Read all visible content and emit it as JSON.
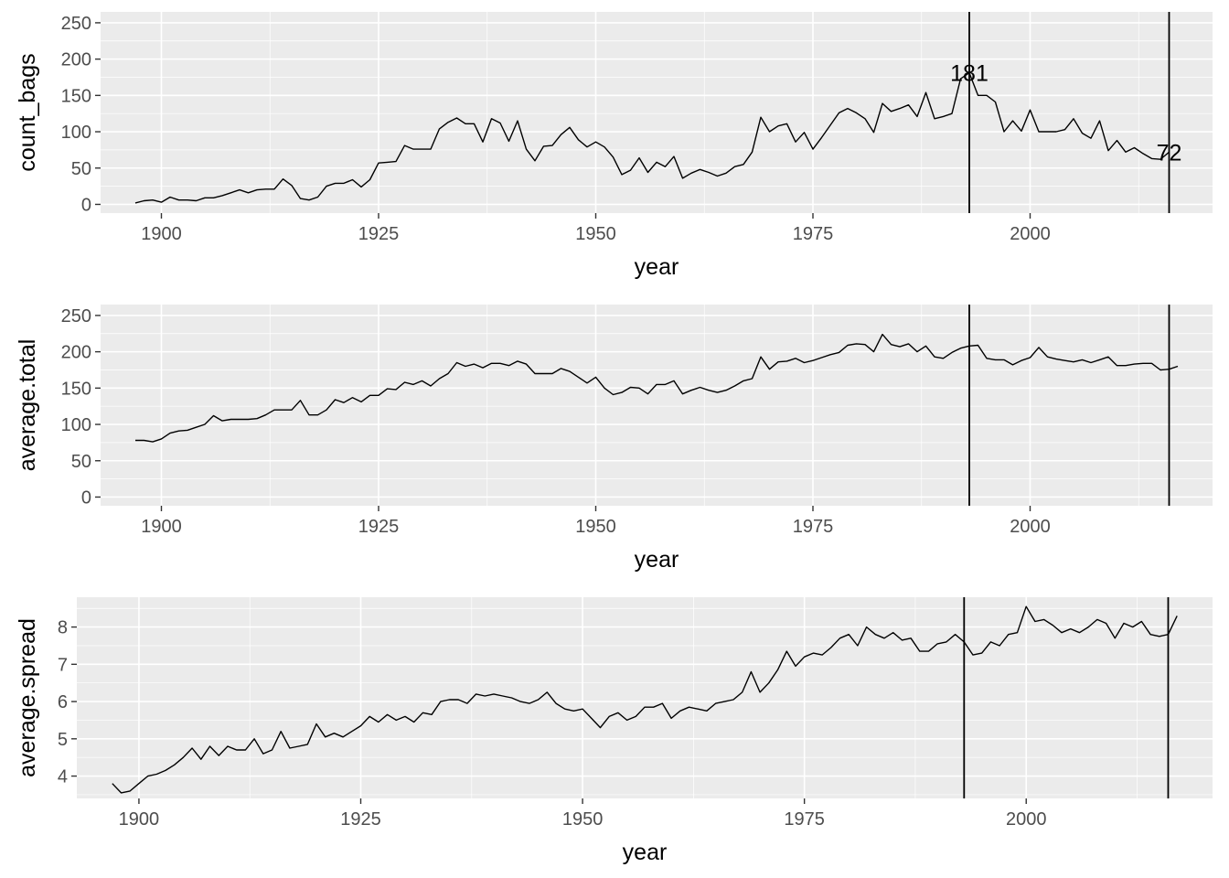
{
  "chart_data": [
    {
      "type": "line",
      "ylabel": "count_bags",
      "xlabel": "year",
      "xlim": [
        1893,
        2021
      ],
      "ylim": [
        -12,
        265
      ],
      "x_ticks": [
        1900,
        1925,
        1950,
        1975,
        2000
      ],
      "y_ticks": [
        0,
        50,
        100,
        150,
        200,
        250
      ],
      "vlines": [
        1993,
        2016
      ],
      "annotations": [
        {
          "x": 1993,
          "y": 181,
          "label": "181"
        },
        {
          "x": 2016,
          "y": 72,
          "label": "72"
        }
      ],
      "x": [
        1897,
        1898,
        1899,
        1900,
        1901,
        1902,
        1903,
        1904,
        1905,
        1906,
        1907,
        1908,
        1909,
        1910,
        1911,
        1912,
        1913,
        1914,
        1915,
        1916,
        1917,
        1918,
        1919,
        1920,
        1921,
        1922,
        1923,
        1924,
        1925,
        1926,
        1927,
        1928,
        1929,
        1930,
        1931,
        1932,
        1933,
        1934,
        1935,
        1936,
        1937,
        1938,
        1939,
        1940,
        1941,
        1942,
        1943,
        1944,
        1945,
        1946,
        1947,
        1948,
        1949,
        1950,
        1951,
        1952,
        1953,
        1954,
        1955,
        1956,
        1957,
        1958,
        1959,
        1960,
        1961,
        1962,
        1963,
        1964,
        1965,
        1966,
        1967,
        1968,
        1969,
        1970,
        1971,
        1972,
        1973,
        1974,
        1975,
        1976,
        1977,
        1978,
        1979,
        1980,
        1981,
        1982,
        1983,
        1984,
        1985,
        1986,
        1987,
        1988,
        1989,
        1990,
        1991,
        1992,
        1993,
        1994,
        1995,
        1996,
        1997,
        1998,
        1999,
        2000,
        2001,
        2002,
        2003,
        2004,
        2005,
        2006,
        2007,
        2008,
        2009,
        2010,
        2011,
        2012,
        2013,
        2014,
        2015,
        2016
      ],
      "values": [
        2,
        5,
        6,
        3,
        10,
        6,
        6,
        5,
        9,
        9,
        12,
        16,
        20,
        16,
        20,
        21,
        21,
        35,
        26,
        8,
        6,
        10,
        25,
        29,
        29,
        34,
        24,
        34,
        57,
        58,
        59,
        81,
        76,
        76,
        76,
        104,
        113,
        119,
        111,
        111,
        86,
        118,
        112,
        87,
        115,
        76,
        60,
        80,
        81,
        96,
        106,
        89,
        79,
        86,
        79,
        65,
        41,
        47,
        64,
        44,
        58,
        52,
        66,
        36,
        43,
        48,
        44,
        39,
        43,
        52,
        55,
        72,
        120,
        100,
        108,
        111,
        86,
        99,
        76,
        92,
        109,
        126,
        132,
        126,
        118,
        99,
        139,
        128,
        132,
        137,
        121,
        154,
        118,
        121,
        125,
        173,
        181,
        150,
        150,
        141,
        100,
        115,
        101,
        130,
        100,
        100,
        100,
        103,
        118,
        98,
        91,
        115,
        74,
        88,
        72,
        78,
        70,
        63,
        62,
        72
      ]
    },
    {
      "type": "line",
      "ylabel": "average.total",
      "xlabel": "year",
      "xlim": [
        1893,
        2021
      ],
      "ylim": [
        -12,
        265
      ],
      "x_ticks": [
        1900,
        1925,
        1950,
        1975,
        2000
      ],
      "y_ticks": [
        0,
        50,
        100,
        150,
        200,
        250
      ],
      "vlines": [
        1993,
        2016
      ],
      "x": [
        1897,
        1898,
        1899,
        1900,
        1901,
        1902,
        1903,
        1904,
        1905,
        1906,
        1907,
        1908,
        1909,
        1910,
        1911,
        1912,
        1913,
        1914,
        1915,
        1916,
        1917,
        1918,
        1919,
        1920,
        1921,
        1922,
        1923,
        1924,
        1925,
        1926,
        1927,
        1928,
        1929,
        1930,
        1931,
        1932,
        1933,
        1934,
        1935,
        1936,
        1937,
        1938,
        1939,
        1940,
        1941,
        1942,
        1943,
        1944,
        1945,
        1946,
        1947,
        1948,
        1949,
        1950,
        1951,
        1952,
        1953,
        1954,
        1955,
        1956,
        1957,
        1958,
        1959,
        1960,
        1961,
        1962,
        1963,
        1964,
        1965,
        1966,
        1967,
        1968,
        1969,
        1970,
        1971,
        1972,
        1973,
        1974,
        1975,
        1976,
        1977,
        1978,
        1979,
        1980,
        1981,
        1982,
        1983,
        1984,
        1985,
        1986,
        1987,
        1988,
        1989,
        1990,
        1991,
        1992,
        1993,
        1994,
        1995,
        1996,
        1997,
        1998,
        1999,
        2000,
        2001,
        2002,
        2003,
        2004,
        2005,
        2006,
        2007,
        2008,
        2009,
        2010,
        2011,
        2012,
        2013,
        2014,
        2015,
        2016,
        2017
      ],
      "values": [
        78,
        78,
        76,
        80,
        88,
        91,
        92,
        96,
        100,
        112,
        105,
        107,
        107,
        107,
        108,
        113,
        120,
        120,
        120,
        133,
        113,
        113,
        120,
        134,
        130,
        137,
        131,
        140,
        140,
        149,
        148,
        158,
        155,
        160,
        153,
        163,
        170,
        185,
        180,
        183,
        178,
        184,
        184,
        181,
        187,
        183,
        170,
        170,
        170,
        177,
        173,
        165,
        157,
        165,
        150,
        141,
        144,
        151,
        150,
        142,
        155,
        155,
        160,
        142,
        147,
        151,
        147,
        144,
        147,
        153,
        160,
        163,
        193,
        176,
        186,
        187,
        191,
        185,
        188,
        192,
        196,
        199,
        209,
        211,
        210,
        200,
        224,
        210,
        207,
        211,
        200,
        208,
        193,
        191,
        199,
        205,
        208,
        209,
        191,
        189,
        189,
        182,
        188,
        192,
        206,
        193,
        190,
        188,
        186,
        189,
        185,
        189,
        193,
        181,
        181,
        183,
        184,
        184,
        175,
        176,
        180
      ]
    },
    {
      "type": "line",
      "ylabel": "average.spread",
      "xlabel": "year",
      "xlim": [
        1893,
        2021
      ],
      "ylim": [
        3.4,
        8.8
      ],
      "x_ticks": [
        1900,
        1925,
        1950,
        1975,
        2000
      ],
      "y_ticks": [
        4,
        5,
        6,
        7,
        8
      ],
      "vlines": [
        1993,
        2016
      ],
      "x": [
        1897,
        1898,
        1899,
        1900,
        1901,
        1902,
        1903,
        1904,
        1905,
        1906,
        1907,
        1908,
        1909,
        1910,
        1911,
        1912,
        1913,
        1914,
        1915,
        1916,
        1917,
        1918,
        1919,
        1920,
        1921,
        1922,
        1923,
        1924,
        1925,
        1926,
        1927,
        1928,
        1929,
        1930,
        1931,
        1932,
        1933,
        1934,
        1935,
        1936,
        1937,
        1938,
        1939,
        1940,
        1941,
        1942,
        1943,
        1944,
        1945,
        1946,
        1947,
        1948,
        1949,
        1950,
        1951,
        1952,
        1953,
        1954,
        1955,
        1956,
        1957,
        1958,
        1959,
        1960,
        1961,
        1962,
        1963,
        1964,
        1965,
        1966,
        1967,
        1968,
        1969,
        1970,
        1971,
        1972,
        1973,
        1974,
        1975,
        1976,
        1977,
        1978,
        1979,
        1980,
        1981,
        1982,
        1983,
        1984,
        1985,
        1986,
        1987,
        1988,
        1989,
        1990,
        1991,
        1992,
        1993,
        1994,
        1995,
        1996,
        1997,
        1998,
        1999,
        2000,
        2001,
        2002,
        2003,
        2004,
        2005,
        2006,
        2007,
        2008,
        2009,
        2010,
        2011,
        2012,
        2013,
        2014,
        2015,
        2016,
        2017
      ],
      "values": [
        3.8,
        3.55,
        3.6,
        3.8,
        4.0,
        4.05,
        4.15,
        4.3,
        4.5,
        4.75,
        4.45,
        4.8,
        4.55,
        4.8,
        4.7,
        4.7,
        5.0,
        4.6,
        4.7,
        5.2,
        4.75,
        4.8,
        4.85,
        5.4,
        5.05,
        5.15,
        5.05,
        5.2,
        5.35,
        5.6,
        5.45,
        5.65,
        5.5,
        5.6,
        5.45,
        5.7,
        5.65,
        6.0,
        6.05,
        6.05,
        5.95,
        6.2,
        6.15,
        6.2,
        6.15,
        6.1,
        6.0,
        5.95,
        6.05,
        6.25,
        5.95,
        5.8,
        5.75,
        5.8,
        5.55,
        5.3,
        5.6,
        5.7,
        5.5,
        5.6,
        5.85,
        5.85,
        5.95,
        5.55,
        5.75,
        5.85,
        5.8,
        5.75,
        5.95,
        6.0,
        6.05,
        6.25,
        6.8,
        6.25,
        6.5,
        6.85,
        7.35,
        6.95,
        7.2,
        7.3,
        7.25,
        7.45,
        7.7,
        7.8,
        7.5,
        8.0,
        7.8,
        7.7,
        7.85,
        7.65,
        7.7,
        7.35,
        7.35,
        7.55,
        7.6,
        7.8,
        7.6,
        7.25,
        7.3,
        7.6,
        7.5,
        7.8,
        7.85,
        8.55,
        8.15,
        8.2,
        8.05,
        7.85,
        7.95,
        7.85,
        8.0,
        8.2,
        8.1,
        7.7,
        8.1,
        8.0,
        8.15,
        7.8,
        7.75,
        7.8,
        8.3
      ]
    }
  ]
}
